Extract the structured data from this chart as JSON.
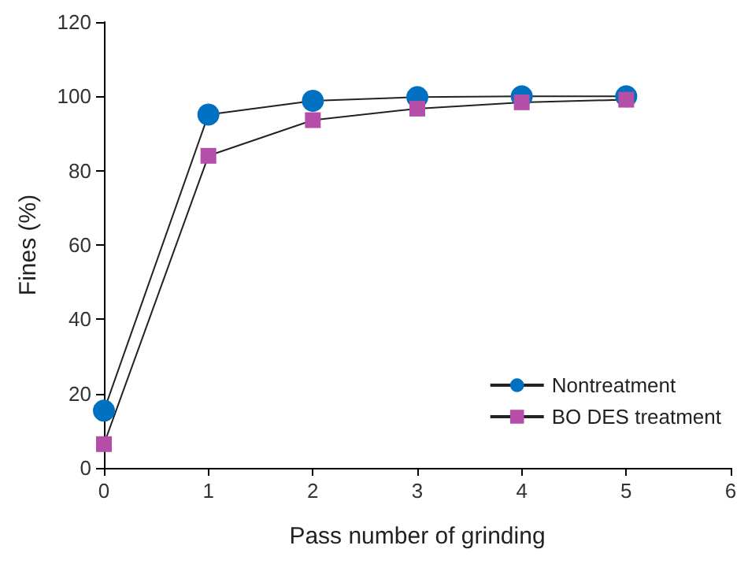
{
  "chart_data": {
    "type": "line",
    "xlabel": "Pass number of grinding",
    "ylabel": "Fines (%)",
    "x": [
      0,
      1,
      2,
      3,
      4,
      5
    ],
    "series": [
      {
        "name": "Nontreatment",
        "color": "#0070c0",
        "marker": "circle",
        "values": [
          15.4,
          95.1,
          98.8,
          99.8,
          100,
          100
        ]
      },
      {
        "name": "BO DES treatment",
        "color": "#b44ea8",
        "marker": "square",
        "values": [
          6.4,
          84,
          93.6,
          96.7,
          98.4,
          99.1
        ]
      }
    ],
    "xlim": [
      0,
      6
    ],
    "xticks": [
      0,
      1,
      2,
      3,
      4,
      5,
      6
    ],
    "ylim": [
      0,
      120
    ],
    "yticks": [
      0,
      20,
      40,
      60,
      80,
      100,
      120
    ],
    "grid": false,
    "legend": "bottom right",
    "line_style": "solid"
  }
}
